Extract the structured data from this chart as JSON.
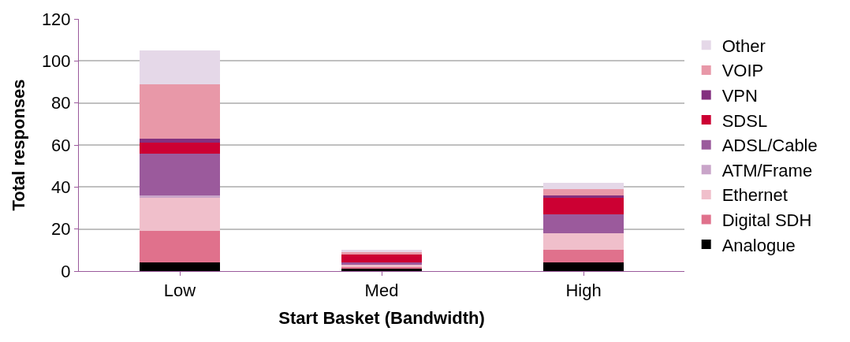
{
  "chart_data": {
    "type": "bar",
    "stacked": true,
    "xlabel": "Start Basket (Bandwidth)",
    "ylabel": "Total responses",
    "categories": [
      "Low",
      "Med",
      "High"
    ],
    "series": [
      {
        "name": "Analogue",
        "color": "#000000",
        "values": [
          4,
          1,
          4
        ]
      },
      {
        "name": "Digital SDH",
        "color": "#e0718c",
        "values": [
          15,
          1,
          6
        ]
      },
      {
        "name": "Ethernet",
        "color": "#f0bfcb",
        "values": [
          16,
          1,
          8
        ]
      },
      {
        "name": "ATM/Frame",
        "color": "#c9a5c9",
        "values": [
          1,
          0,
          0
        ]
      },
      {
        "name": "ADSL/Cable",
        "color": "#9b5a9c",
        "values": [
          20,
          1,
          9
        ]
      },
      {
        "name": "SDSL",
        "color": "#cc0033",
        "values": [
          5,
          4,
          8
        ]
      },
      {
        "name": "VPN",
        "color": "#83307f",
        "values": [
          2,
          0,
          1
        ]
      },
      {
        "name": "VOIP",
        "color": "#e898a8",
        "values": [
          26,
          1,
          3
        ]
      },
      {
        "name": "Other",
        "color": "#e5d8e8",
        "values": [
          16,
          1,
          3
        ]
      }
    ],
    "ylim": [
      0,
      120
    ],
    "yticks": [
      0,
      20,
      40,
      60,
      80,
      100,
      120
    ],
    "grid": "y",
    "legend": "right"
  }
}
